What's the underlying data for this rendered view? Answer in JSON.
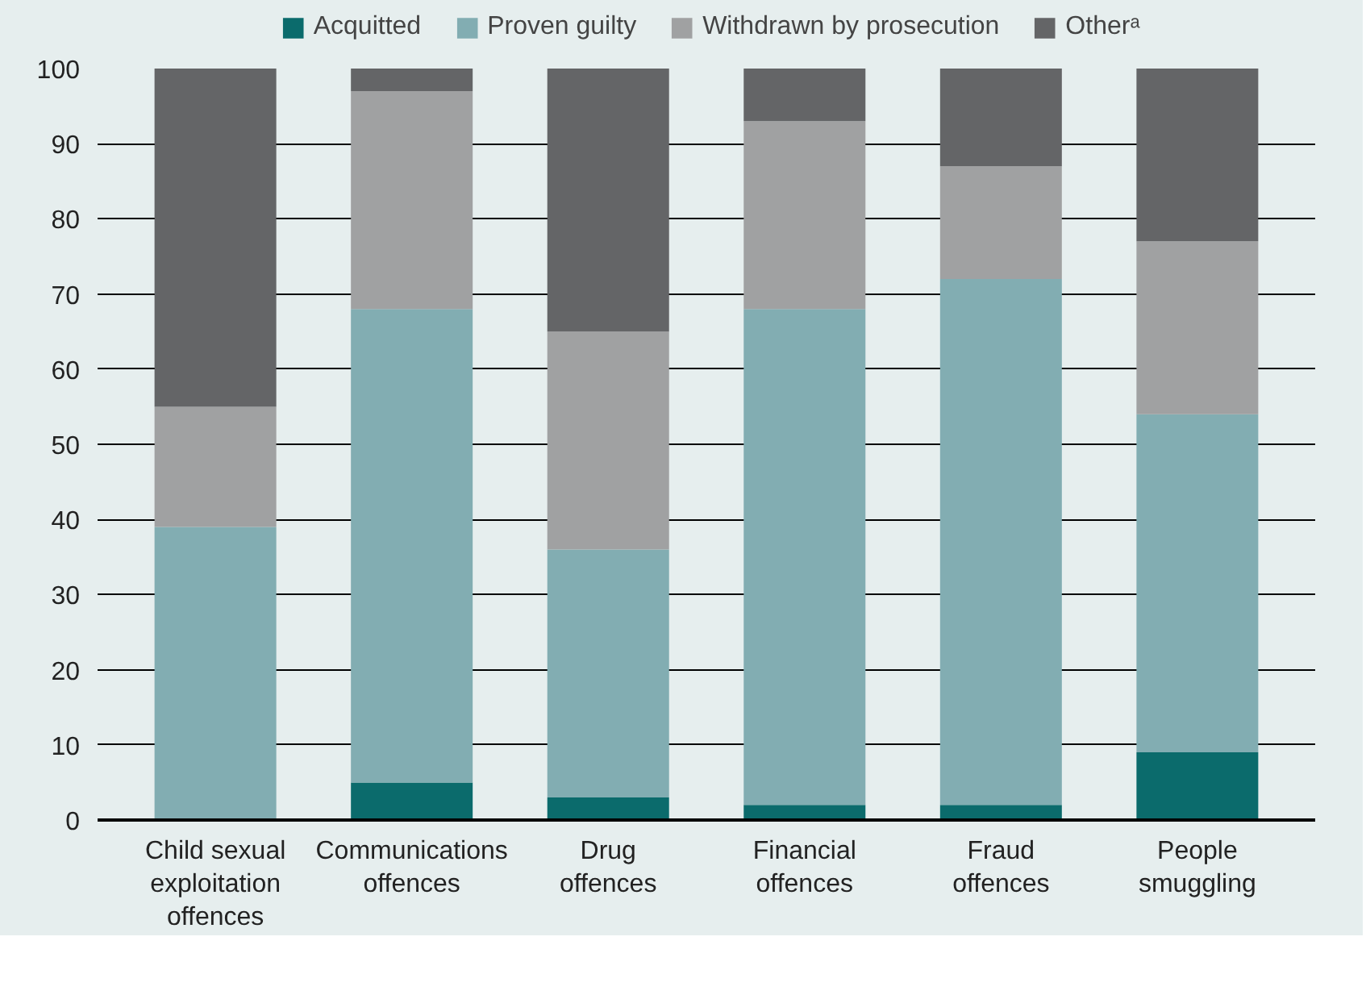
{
  "chart_data": {
    "type": "bar",
    "stacked": true,
    "categories": [
      "Child sexual\nexploitation\noffences",
      "Communications\noffences",
      "Drug\noffences",
      "Financial\noffences",
      "Fraud\noffences",
      "People\nsmuggling"
    ],
    "series": [
      {
        "name": "Acquitted",
        "color": "#0b6b6c",
        "values": [
          0,
          5,
          3,
          2,
          2,
          9
        ]
      },
      {
        "name": "Proven guilty",
        "color": "#82adb2",
        "values": [
          39,
          63,
          33,
          66,
          70,
          45
        ]
      },
      {
        "name": "Withdrawn by prosecution",
        "color": "#a0a1a2",
        "values": [
          16,
          29,
          29,
          25,
          15,
          23
        ]
      },
      {
        "name": "Otherᵃ",
        "color": "#646567",
        "values": [
          45,
          3,
          35,
          7,
          13,
          23
        ]
      }
    ],
    "ylim": [
      0,
      100
    ],
    "yticks": [
      0,
      10,
      20,
      30,
      40,
      50,
      60,
      70,
      80,
      90,
      100
    ],
    "grid": "y",
    "legend": "top"
  }
}
